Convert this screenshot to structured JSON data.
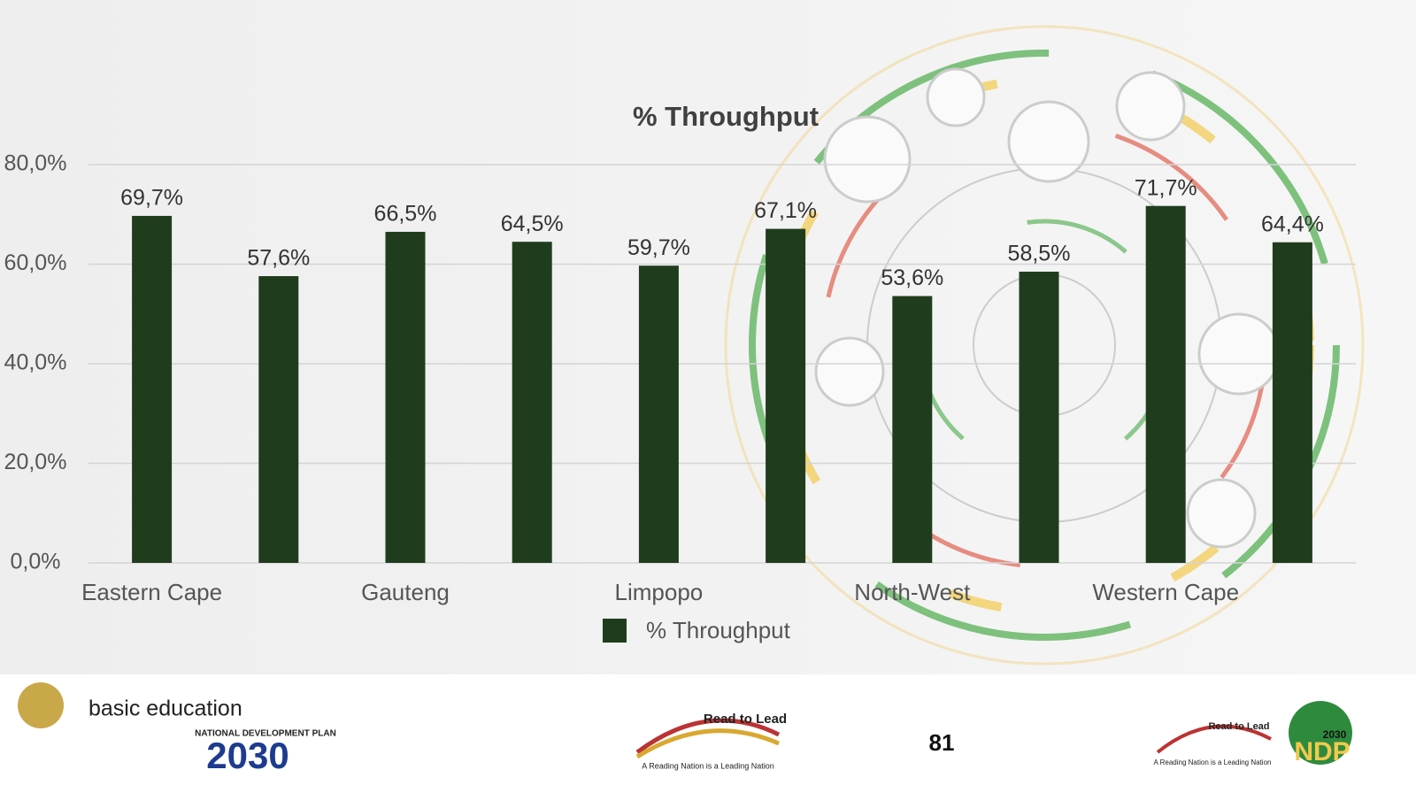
{
  "chart_data": {
    "type": "bar",
    "title": "% Throughput",
    "categories": [
      "Eastern Cape",
      null,
      "Gauteng",
      null,
      "Limpopo",
      null,
      "North-West",
      null,
      "Western Cape",
      null
    ],
    "series": [
      {
        "name": "% Throughput",
        "color": "#1f3d1d",
        "values": [
          69.7,
          57.6,
          66.5,
          64.5,
          59.7,
          67.1,
          53.6,
          58.5,
          71.7,
          64.4
        ],
        "value_labels": [
          "69,7%",
          "57,6%",
          "66,5%",
          "64,5%",
          "59,7%",
          "67,1%",
          "53,6%",
          "58,5%",
          "71,7%",
          "64,4%"
        ]
      }
    ],
    "ylim": [
      0,
      80
    ],
    "yticks": [
      {
        "value": 0,
        "label": "0,0%"
      },
      {
        "value": 20,
        "label": "20,0%"
      },
      {
        "value": 40,
        "label": "40,0%"
      },
      {
        "value": 60,
        "label": "60,0%"
      },
      {
        "value": 80,
        "label": "80,0%"
      }
    ],
    "grid": true,
    "legend": "bottom"
  },
  "footer": {
    "left_logo": "basic education",
    "ndp_plan": "NATIONAL DEVELOPMENT PLAN",
    "ndp_year": "2030",
    "center_logo": {
      "title": "Read to Lead",
      "tagline": "A Reading Nation is a Leading Nation"
    },
    "page_number": "81",
    "right_logo": {
      "title": "Read to Lead",
      "tagline": "A Reading Nation is a Leading Nation",
      "year": "2030",
      "ndp": "NDP"
    }
  }
}
